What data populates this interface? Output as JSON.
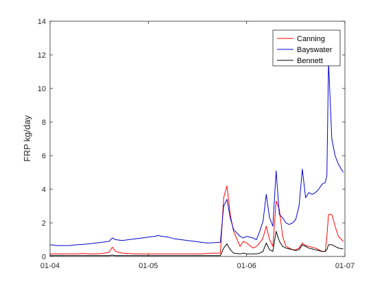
{
  "chart_data": {
    "type": "line",
    "title": "",
    "xlabel": "",
    "ylabel": "FRP kg/day",
    "xlim": [
      0,
      90
    ],
    "ylim": [
      0,
      14
    ],
    "yticks": [
      0,
      2,
      4,
      6,
      8,
      10,
      12,
      14
    ],
    "xticks": [
      {
        "value": 0,
        "label": "01-04"
      },
      {
        "value": 30,
        "label": "01-05"
      },
      {
        "value": 60,
        "label": "01-06"
      },
      {
        "value": 90,
        "label": "01-07"
      }
    ],
    "grid": false,
    "legend_position": "top-right",
    "x": [
      0,
      2,
      4,
      6,
      8,
      10,
      12,
      14,
      16,
      18,
      19,
      20,
      22,
      24,
      26,
      28,
      30,
      32,
      33,
      34,
      36,
      38,
      40,
      42,
      44,
      46,
      48,
      50,
      52,
      53,
      54,
      55,
      56,
      58,
      59,
      60,
      62,
      63,
      64,
      65,
      66,
      67,
      68,
      69,
      70,
      71,
      72,
      73,
      74,
      75,
      76,
      77,
      78,
      79,
      80,
      81,
      82,
      83,
      84,
      84.5,
      85,
      86,
      87,
      88,
      89.5
    ],
    "series": [
      {
        "name": "Canning",
        "color": "#ff0000",
        "values": [
          0.15,
          0.15,
          0.15,
          0.15,
          0.15,
          0.18,
          0.15,
          0.15,
          0.18,
          0.25,
          0.55,
          0.3,
          0.2,
          0.18,
          0.15,
          0.15,
          0.15,
          0.15,
          0.15,
          0.15,
          0.15,
          0.15,
          0.15,
          0.15,
          0.15,
          0.15,
          0.18,
          0.2,
          0.2,
          3.5,
          4.2,
          2.5,
          1.5,
          0.6,
          0.9,
          0.8,
          0.5,
          0.6,
          0.8,
          1.1,
          1.8,
          1.0,
          0.6,
          3.3,
          2.8,
          1.2,
          0.6,
          0.5,
          0.4,
          0.4,
          0.5,
          0.8,
          0.65,
          0.6,
          0.55,
          0.5,
          0.4,
          0.3,
          0.3,
          1.2,
          2.5,
          2.5,
          1.8,
          1.2,
          0.9
        ]
      },
      {
        "name": "Bayswater",
        "color": "#0000cc",
        "values": [
          0.7,
          0.65,
          0.65,
          0.65,
          0.7,
          0.72,
          0.75,
          0.8,
          0.85,
          0.9,
          1.1,
          1.0,
          0.95,
          1.0,
          1.05,
          1.1,
          1.15,
          1.2,
          1.25,
          1.2,
          1.15,
          1.05,
          1.0,
          0.95,
          0.9,
          0.85,
          0.8,
          0.82,
          0.85,
          3.0,
          3.4,
          2.3,
          1.6,
          1.2,
          1.1,
          1.2,
          1.1,
          1.0,
          1.5,
          2.1,
          3.7,
          2.3,
          1.8,
          5.1,
          2.5,
          2.3,
          2.0,
          1.9,
          2.0,
          2.2,
          3.0,
          5.2,
          3.5,
          3.8,
          3.7,
          3.8,
          4.0,
          4.3,
          4.4,
          4.8,
          11.6,
          7.0,
          6.0,
          5.5,
          5.0
        ]
      },
      {
        "name": "Bennett",
        "color": "#000000",
        "values": [
          0.05,
          0.05,
          0.05,
          0.05,
          0.05,
          0.05,
          0.05,
          0.05,
          0.05,
          0.05,
          0.08,
          0.05,
          0.05,
          0.05,
          0.05,
          0.05,
          0.05,
          0.05,
          0.05,
          0.05,
          0.05,
          0.05,
          0.05,
          0.05,
          0.05,
          0.05,
          0.05,
          0.05,
          0.05,
          0.5,
          0.75,
          0.4,
          0.2,
          0.15,
          0.2,
          0.15,
          0.15,
          0.15,
          0.2,
          0.3,
          0.8,
          0.4,
          0.3,
          1.5,
          0.9,
          0.6,
          0.5,
          0.45,
          0.4,
          0.35,
          0.4,
          0.7,
          0.6,
          0.5,
          0.45,
          0.4,
          0.35,
          0.3,
          0.3,
          0.4,
          0.7,
          0.7,
          0.6,
          0.5,
          0.45
        ]
      }
    ]
  }
}
